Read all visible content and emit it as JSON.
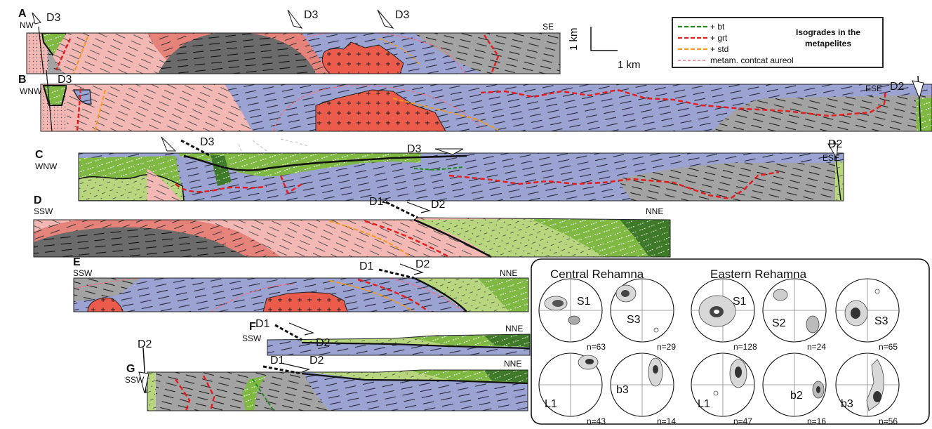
{
  "sections": [
    {
      "letter": "A",
      "left_label": "NW",
      "right_label": "SE",
      "structures": [
        "D3",
        "D3",
        "D3"
      ]
    },
    {
      "letter": "B",
      "left_label": "WNW",
      "right_label": "ESE",
      "structures": [
        "D3",
        "D2"
      ]
    },
    {
      "letter": "C",
      "left_label": "WNW",
      "right_label": "ESE",
      "structures": [
        "D3",
        "D3",
        "D2"
      ]
    },
    {
      "letter": "D",
      "left_label": "SSW",
      "right_label": "NNE",
      "structures": [
        "D1",
        "D2"
      ]
    },
    {
      "letter": "E",
      "left_label": "SSW",
      "right_label": "NNE",
      "structures": [
        "D1",
        "D2"
      ]
    },
    {
      "letter": "F",
      "left_label": "SSW",
      "right_label": "NNE",
      "structures": [
        "D1",
        "D2"
      ]
    },
    {
      "letter": "G",
      "left_label": "SSW",
      "right_label": "NNE",
      "structures": [
        "D2",
        "D1",
        "D2"
      ]
    }
  ],
  "scale": {
    "vertical": "1 km",
    "horizontal": "1 km"
  },
  "legend": {
    "title_line1": "Isogrades in the",
    "title_line2": "metapelites",
    "items": [
      {
        "label": "+ bt",
        "color": "#1f8a1f"
      },
      {
        "label": "+ grt",
        "color": "#e41e1e"
      },
      {
        "label": "+ std",
        "color": "#f39a1e"
      },
      {
        "label": "metam. contcat aureol",
        "color": "#f07080"
      }
    ]
  },
  "stereonets": {
    "central_title": "Central Rehamna",
    "eastern_title": "Eastern Rehamna",
    "nets": [
      {
        "label": "S1",
        "n": "n=63"
      },
      {
        "label": "S3",
        "n": "n=29"
      },
      {
        "label": "S1",
        "n": "n=128"
      },
      {
        "label": "S2",
        "n": "n=24"
      },
      {
        "label": "S3",
        "n": "n=65"
      },
      {
        "label": "L1",
        "n": "n=43"
      },
      {
        "label": "b3",
        "n": "n=14"
      },
      {
        "label": "L1",
        "n": "n=47"
      },
      {
        "label": "b2",
        "n": "n=16"
      },
      {
        "label": "b3",
        "n": "n=56"
      }
    ]
  },
  "colors": {
    "slate_blue": "#9aa3d2",
    "grey": "#a3a3a3",
    "dark_grey": "#6b6b6b",
    "pink": "#f3b7b4",
    "salmon": "#e5837b",
    "granite_red": "#ea5b4c",
    "light_green": "#b8d67e",
    "mid_green": "#7fb843",
    "dark_green": "#3f7a2a"
  }
}
